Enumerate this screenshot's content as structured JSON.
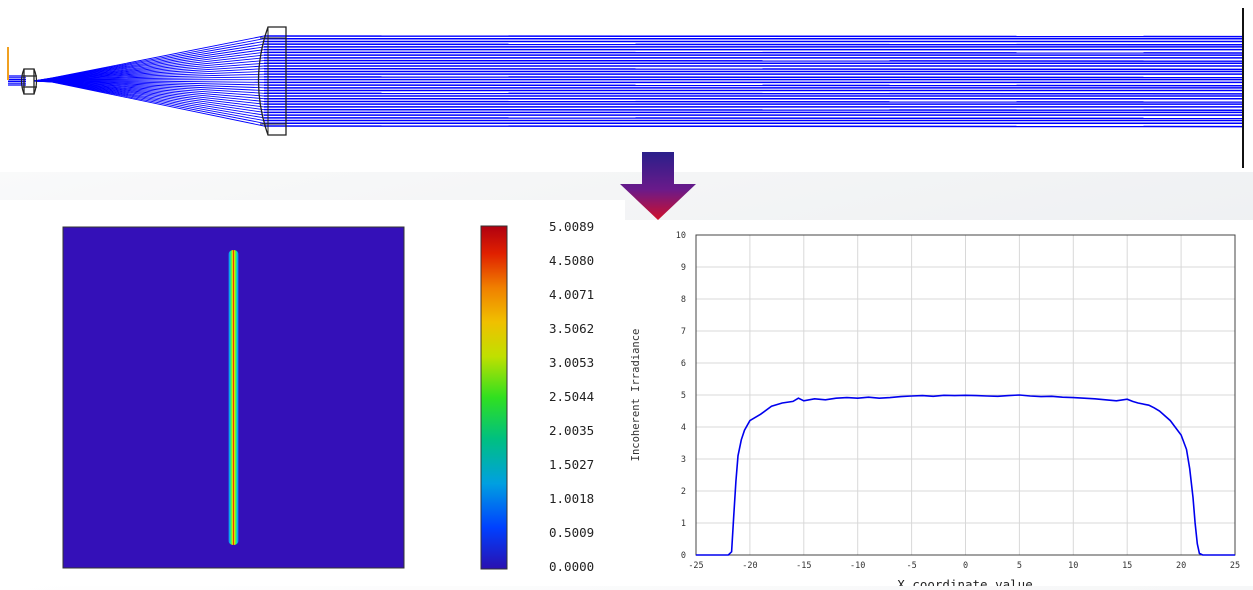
{
  "colors": {
    "ray": "#0000ff",
    "lens_outline": "#222222",
    "source": "#f0a020",
    "map_background": "#3410b8",
    "curve": "#0000ee",
    "grid": "#d8d8d8"
  },
  "layout_view": {
    "description_free": true,
    "rays": "parallel-beam"
  },
  "arrow": {
    "icon": "down-arrow-icon",
    "color_top": "#2a1f8a",
    "color_bottom": "#d0102a"
  },
  "chart_data": [
    {
      "type": "heatmap",
      "colormap": "rainbow",
      "colorbar_ticks": [
        "5.0089",
        "4.5080",
        "4.0071",
        "3.5062",
        "3.0053",
        "2.5044",
        "2.0035",
        "1.5027",
        "1.0018",
        "0.5009",
        "0.0000"
      ],
      "range": [
        0,
        5.0089
      ],
      "feature": "narrow vertical line"
    },
    {
      "type": "line",
      "ylabel": "Incoherent Irradiance",
      "xlabel": "X coordinate value",
      "xlim": [
        -25,
        25
      ],
      "ylim": [
        0,
        10
      ],
      "x_ticks": [
        "-25",
        "-20",
        "-15",
        "-10",
        "-5",
        "0",
        "5",
        "10",
        "15",
        "20",
        "25"
      ],
      "y_ticks": [
        "0",
        "1",
        "2",
        "3",
        "4",
        "5",
        "6",
        "7",
        "8",
        "9",
        "10"
      ],
      "grid": true,
      "x": [
        -25,
        -22,
        -21.7,
        -21.5,
        -21.3,
        -21.1,
        -20.8,
        -20.5,
        -20,
        -19,
        -18,
        -17,
        -16,
        -15.5,
        -15,
        -14,
        -13,
        -12,
        -11,
        -10,
        -9,
        -8,
        -7,
        -6,
        -5,
        -4,
        -3,
        -2,
        -1,
        0,
        1,
        2,
        3,
        4,
        5,
        6,
        7,
        8,
        9,
        10,
        11,
        12,
        13,
        14,
        15,
        15.5,
        16,
        17,
        17.5,
        18,
        19,
        20,
        20.5,
        20.8,
        21.1,
        21.3,
        21.5,
        21.7,
        22,
        25
      ],
      "y": [
        0,
        0,
        0.1,
        1.2,
        2.3,
        3.1,
        3.6,
        3.9,
        4.2,
        4.4,
        4.65,
        4.75,
        4.8,
        4.9,
        4.82,
        4.88,
        4.85,
        4.9,
        4.92,
        4.9,
        4.93,
        4.9,
        4.92,
        4.95,
        4.97,
        4.98,
        4.96,
        4.99,
        4.98,
        4.99,
        4.98,
        4.97,
        4.96,
        4.98,
        5.0,
        4.97,
        4.95,
        4.96,
        4.93,
        4.92,
        4.9,
        4.88,
        4.85,
        4.82,
        4.87,
        4.8,
        4.75,
        4.68,
        4.6,
        4.5,
        4.2,
        3.75,
        3.3,
        2.7,
        1.8,
        1.0,
        0.35,
        0.05,
        0,
        0
      ]
    }
  ]
}
